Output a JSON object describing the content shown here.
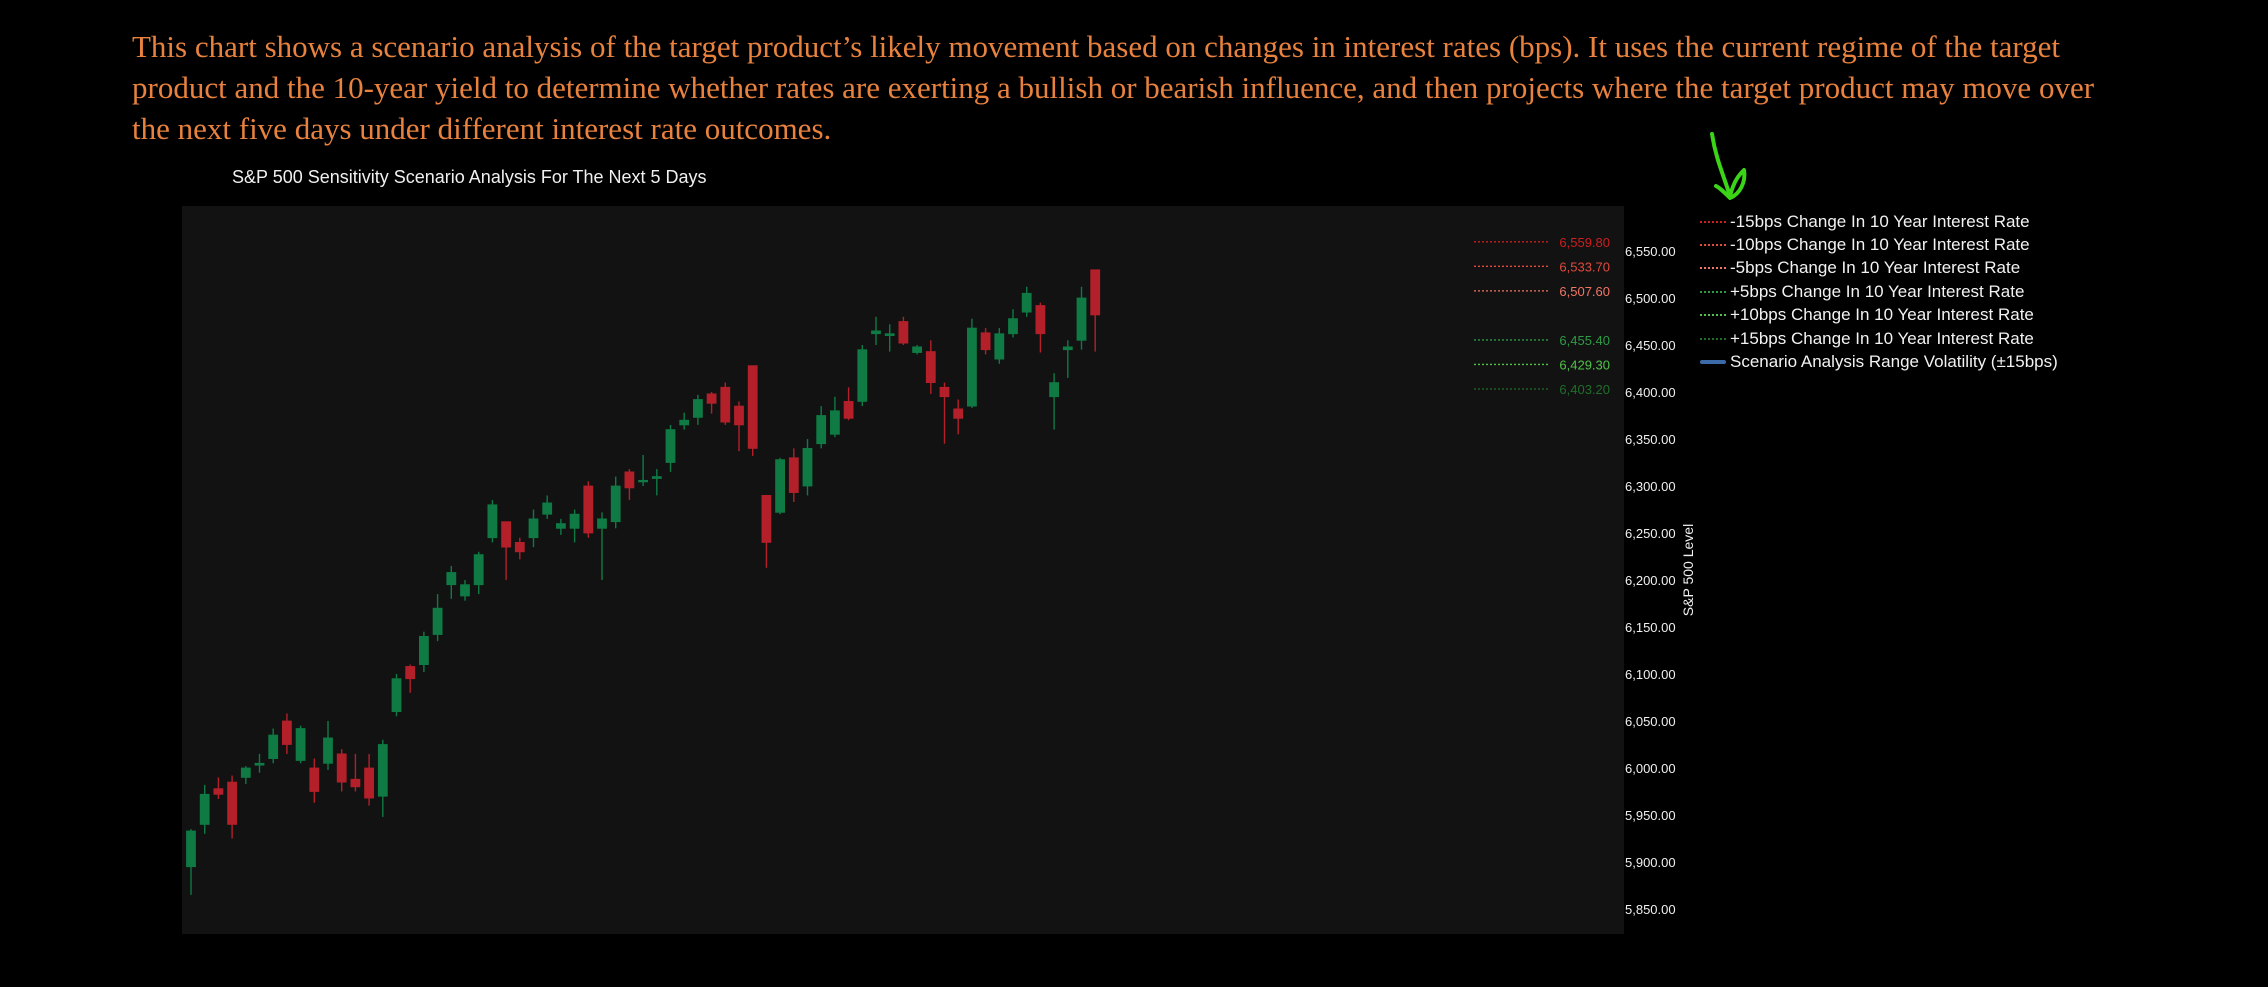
{
  "description": "This chart shows a scenario analysis of the target product’s likely movement based on changes in interest rates (bps). It uses the current regime of the target product and the 10-year yield to determine whether rates are exerting a bullish or bearish influence, and then projects where the target product may move over the next five days under different interest rate outcomes.",
  "colors": {
    "background": "#000000",
    "plot_bg": "#121212",
    "up": "#0f7a44",
    "down": "#b3202a",
    "text_accent": "#e8823e"
  },
  "chart_data": {
    "type": "candlestick",
    "title": "S&P 500 Sensitivity Scenario Analysis For The Next 5 Days",
    "ylabel": "S&P 500 Level",
    "ylim": [
      5830,
      6575
    ],
    "y_ticks": [
      "6,550.00",
      "6,500.00",
      "6,450.00",
      "6,400.00",
      "6,350.00",
      "6,300.00",
      "6,250.00",
      "6,200.00",
      "6,150.00",
      "6,100.00",
      "6,050.00",
      "6,000.00",
      "5,950.00",
      "5,900.00",
      "5,850.00"
    ],
    "y_tick_values": [
      6550,
      6500,
      6450,
      6400,
      6350,
      6300,
      6250,
      6200,
      6150,
      6100,
      6050,
      6000,
      5950,
      5900,
      5850
    ],
    "candles": [
      {
        "o": 5895,
        "h": 5935,
        "l": 5865,
        "c": 5933
      },
      {
        "o": 5940,
        "h": 5982,
        "l": 5930,
        "c": 5972
      },
      {
        "o": 5978,
        "h": 5990,
        "l": 5967,
        "c": 5972
      },
      {
        "o": 5985,
        "h": 5992,
        "l": 5925,
        "c": 5940
      },
      {
        "o": 5990,
        "h": 6002,
        "l": 5983,
        "c": 6000
      },
      {
        "o": 6003,
        "h": 6015,
        "l": 5995,
        "c": 6005
      },
      {
        "o": 6010,
        "h": 6042,
        "l": 6005,
        "c": 6035
      },
      {
        "o": 6050,
        "h": 6058,
        "l": 6015,
        "c": 6025
      },
      {
        "o": 6008,
        "h": 6045,
        "l": 6005,
        "c": 6042
      },
      {
        "o": 6000,
        "h": 6010,
        "l": 5963,
        "c": 5975
      },
      {
        "o": 6005,
        "h": 6050,
        "l": 5998,
        "c": 6032
      },
      {
        "o": 6015,
        "h": 6020,
        "l": 5975,
        "c": 5985
      },
      {
        "o": 5988,
        "h": 6015,
        "l": 5975,
        "c": 5980
      },
      {
        "o": 6000,
        "h": 6015,
        "l": 5960,
        "c": 5968
      },
      {
        "o": 5970,
        "h": 6030,
        "l": 5948,
        "c": 6025
      },
      {
        "o": 6060,
        "h": 6100,
        "l": 6055,
        "c": 6095
      },
      {
        "o": 6108,
        "h": 6110,
        "l": 6080,
        "c": 6095
      },
      {
        "o": 6110,
        "h": 6145,
        "l": 6102,
        "c": 6140
      },
      {
        "o": 6142,
        "h": 6185,
        "l": 6135,
        "c": 6170
      },
      {
        "o": 6195,
        "h": 6215,
        "l": 6180,
        "c": 6208
      },
      {
        "o": 6183,
        "h": 6200,
        "l": 6178,
        "c": 6195
      },
      {
        "o": 6195,
        "h": 6230,
        "l": 6185,
        "c": 6227
      },
      {
        "o": 6245,
        "h": 6285,
        "l": 6240,
        "c": 6280
      },
      {
        "o": 6262,
        "h": 6262,
        "l": 6200,
        "c": 6235
      },
      {
        "o": 6240,
        "h": 6245,
        "l": 6222,
        "c": 6230
      },
      {
        "o": 6245,
        "h": 6275,
        "l": 6235,
        "c": 6265
      },
      {
        "o": 6270,
        "h": 6290,
        "l": 6265,
        "c": 6282
      },
      {
        "o": 6255,
        "h": 6265,
        "l": 6248,
        "c": 6260
      },
      {
        "o": 6255,
        "h": 6275,
        "l": 6240,
        "c": 6270
      },
      {
        "o": 6300,
        "h": 6305,
        "l": 6245,
        "c": 6250
      },
      {
        "o": 6255,
        "h": 6272,
        "l": 6200,
        "c": 6265
      },
      {
        "o": 6262,
        "h": 6310,
        "l": 6255,
        "c": 6300
      },
      {
        "o": 6315,
        "h": 6318,
        "l": 6285,
        "c": 6298
      },
      {
        "o": 6305,
        "h": 6333,
        "l": 6300,
        "c": 6306
      },
      {
        "o": 6308,
        "h": 6318,
        "l": 6290,
        "c": 6310
      },
      {
        "o": 6325,
        "h": 6365,
        "l": 6315,
        "c": 6360
      },
      {
        "o": 6365,
        "h": 6378,
        "l": 6360,
        "c": 6370
      },
      {
        "o": 6373,
        "h": 6397,
        "l": 6365,
        "c": 6392
      },
      {
        "o": 6398,
        "h": 6400,
        "l": 6377,
        "c": 6388
      },
      {
        "o": 6405,
        "h": 6410,
        "l": 6365,
        "c": 6368
      },
      {
        "o": 6385,
        "h": 6390,
        "l": 6337,
        "c": 6365
      },
      {
        "o": 6428,
        "h": 6428,
        "l": 6332,
        "c": 6340
      },
      {
        "o": 6290,
        "h": 6290,
        "l": 6213,
        "c": 6240
      },
      {
        "o": 6272,
        "h": 6330,
        "l": 6270,
        "c": 6328
      },
      {
        "o": 6330,
        "h": 6340,
        "l": 6283,
        "c": 6293
      },
      {
        "o": 6300,
        "h": 6350,
        "l": 6290,
        "c": 6340
      },
      {
        "o": 6345,
        "h": 6385,
        "l": 6340,
        "c": 6375
      },
      {
        "o": 6355,
        "h": 6395,
        "l": 6352,
        "c": 6380
      },
      {
        "o": 6390,
        "h": 6405,
        "l": 6370,
        "c": 6372
      },
      {
        "o": 6390,
        "h": 6450,
        "l": 6385,
        "c": 6445
      },
      {
        "o": 6462,
        "h": 6480,
        "l": 6450,
        "c": 6465
      },
      {
        "o": 6460,
        "h": 6472,
        "l": 6443,
        "c": 6462
      },
      {
        "o": 6475,
        "h": 6480,
        "l": 6450,
        "c": 6452
      },
      {
        "o": 6442,
        "h": 6450,
        "l": 6440,
        "c": 6448
      },
      {
        "o": 6443,
        "h": 6455,
        "l": 6398,
        "c": 6410
      },
      {
        "o": 6405,
        "h": 6410,
        "l": 6345,
        "c": 6395
      },
      {
        "o": 6382,
        "h": 6392,
        "l": 6355,
        "c": 6372
      },
      {
        "o": 6385,
        "h": 6478,
        "l": 6383,
        "c": 6468
      },
      {
        "o": 6463,
        "h": 6468,
        "l": 6440,
        "c": 6445
      },
      {
        "o": 6435,
        "h": 6468,
        "l": 6430,
        "c": 6462
      },
      {
        "o": 6462,
        "h": 6488,
        "l": 6458,
        "c": 6478
      },
      {
        "o": 6485,
        "h": 6512,
        "l": 6480,
        "c": 6505
      },
      {
        "o": 6492,
        "h": 6495,
        "l": 6442,
        "c": 6462
      },
      {
        "o": 6395,
        "h": 6420,
        "l": 6360,
        "c": 6410
      },
      {
        "o": 6445,
        "h": 6455,
        "l": 6415,
        "c": 6448
      },
      {
        "o": 6455,
        "h": 6512,
        "l": 6445,
        "c": 6500
      },
      {
        "o": 6530,
        "h": 6530,
        "l": 6443,
        "c": 6482
      }
    ],
    "scenarios": [
      {
        "label": "-15bps Change In 10 Year Interest Rate",
        "value": 6559.8,
        "value_label": "6,559.80",
        "color": "#cc1f1f"
      },
      {
        "label": "-10bps Change In 10 Year Interest Rate",
        "value": 6533.7,
        "value_label": "6,533.70",
        "color": "#e14a3c"
      },
      {
        "label": "-5bps Change In 10 Year Interest Rate",
        "value": 6507.6,
        "value_label": "6,507.60",
        "color": "#f07565"
      },
      {
        "label": "+5bps Change In 10 Year Interest Rate",
        "value": 6455.4,
        "value_label": "6,455.40",
        "color": "#2e9b45"
      },
      {
        "label": "+10bps Change In 10 Year Interest Rate",
        "value": 6429.3,
        "value_label": "6,429.30",
        "color": "#52c24a"
      },
      {
        "label": "+15bps Change In 10 Year Interest Rate",
        "value": 6403.2,
        "value_label": "6,403.20",
        "color": "#1f6f2a"
      }
    ],
    "band_label": "Scenario Analysis Range Volatility (±15bps)",
    "band_color": "#3a6aa8",
    "legend_position": "right"
  }
}
